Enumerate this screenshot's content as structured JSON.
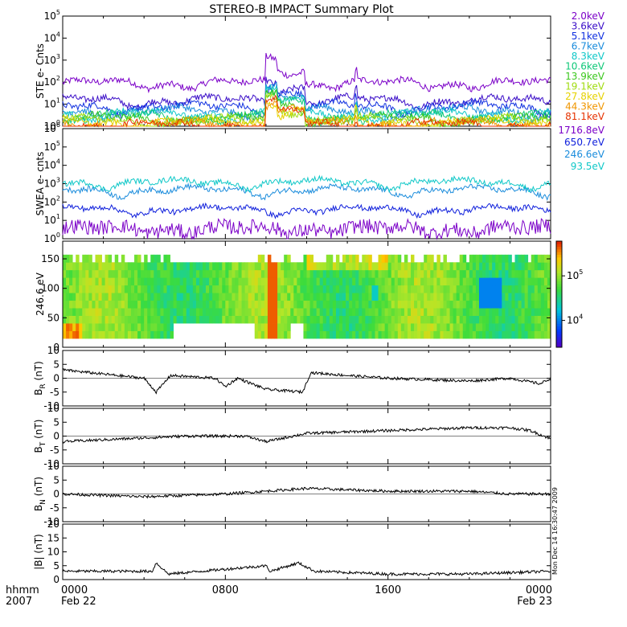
{
  "title": "STEREO-B IMPACT Summary Plot",
  "time_axis": {
    "corner_labels": [
      "hhmm",
      "2007"
    ],
    "ticks": [
      {
        "hour": 0,
        "label": "0000",
        "date": "Feb 22"
      },
      {
        "hour": 8,
        "label": "0800",
        "date": ""
      },
      {
        "hour": 16,
        "label": "1600",
        "date": ""
      },
      {
        "hour": 24,
        "label": "0000",
        "date": "Feb 23"
      }
    ],
    "range_hours": [
      0,
      24
    ]
  },
  "side_note": "Mon Dec 14 16:30:47 2009",
  "colors": {
    "axes": "#000000",
    "background": "#ffffff"
  },
  "chart_data": [
    {
      "type": "line",
      "ylabel": "STE e- Cnts",
      "scale": "log",
      "ylim": [
        1,
        100000
      ],
      "yticks": [
        {
          "v": 1,
          "base": "10",
          "exp": "0"
        },
        {
          "v": 10,
          "base": "10",
          "exp": "1"
        },
        {
          "v": 100,
          "base": "10",
          "exp": "2"
        },
        {
          "v": 1000,
          "base": "10",
          "exp": "3"
        },
        {
          "v": 10000,
          "base": "10",
          "exp": "4"
        },
        {
          "v": 100000,
          "base": "10",
          "exp": "5"
        }
      ],
      "events": [
        {
          "start": 9.95,
          "end": 10.55,
          "factor": 12
        },
        {
          "start": 10.55,
          "end": 11.9,
          "factor": 4
        },
        {
          "start": 14.4,
          "end": 14.5,
          "factor": 3
        }
      ],
      "series": [
        {
          "name": "2.0keV",
          "color": "#7b00c8",
          "base": 90
        },
        {
          "name": "3.6keV",
          "color": "#3a0dc8",
          "base": 15
        },
        {
          "name": "5.1keV",
          "color": "#1030e0",
          "base": 8
        },
        {
          "name": "6.7keV",
          "color": "#1a8cdc",
          "base": 5
        },
        {
          "name": "8.3keV",
          "color": "#10c8c8",
          "base": 3.6
        },
        {
          "name": "10.6keV",
          "color": "#10c878",
          "base": 2.8
        },
        {
          "name": "13.9keV",
          "color": "#3cc81e",
          "base": 2.2
        },
        {
          "name": "19.1keV",
          "color": "#a0dc10",
          "base": 1.8
        },
        {
          "name": "27.8keV",
          "color": "#e6d200",
          "base": 1.5
        },
        {
          "name": "44.3keV",
          "color": "#f09600",
          "base": 1.3
        },
        {
          "name": "81.1keV",
          "color": "#e63200",
          "base": 1.15
        }
      ]
    },
    {
      "type": "line",
      "ylabel": "SWEA e- cnts",
      "scale": "log",
      "ylim": [
        1,
        1000000
      ],
      "yticks": [
        {
          "v": 1,
          "base": "10",
          "exp": "0"
        },
        {
          "v": 10,
          "base": "10",
          "exp": "1"
        },
        {
          "v": 100,
          "base": "10",
          "exp": "2"
        },
        {
          "v": 1000,
          "base": "10",
          "exp": "3"
        },
        {
          "v": 10000,
          "base": "10",
          "exp": "4"
        },
        {
          "v": 100000,
          "base": "10",
          "exp": "5"
        },
        {
          "v": 1000000,
          "base": "10",
          "exp": "6"
        }
      ],
      "series": [
        {
          "name": "1716.8eV",
          "color": "#7b00c8",
          "base": 3.5
        },
        {
          "name": "650.7eV",
          "color": "#1020dc",
          "base": 40
        },
        {
          "name": "246.6eV",
          "color": "#1a8cdc",
          "base": 450
        },
        {
          "name": "93.5eV",
          "color": "#10c8c8",
          "base": 1200
        }
      ]
    },
    {
      "type": "heatmap",
      "ylabel": "246.6 eV",
      "ylim": [
        0,
        180
      ],
      "yticks": [
        0,
        50,
        100,
        150
      ],
      "colorbar": {
        "min": 2500,
        "max": 600000,
        "ticks": [
          {
            "v": 10000,
            "base": "10",
            "exp": "4"
          },
          {
            "v": 100000,
            "base": "10",
            "exp": "5"
          }
        ]
      }
    },
    {
      "type": "line",
      "ylabel_main": "B",
      "ylabel_sub": "R",
      "ylabel_unit": "(nT)",
      "ylim": [
        -10,
        10
      ],
      "yticks": [
        -10,
        -5,
        0,
        5,
        10
      ],
      "segments": [
        [
          0,
          3
        ],
        [
          2,
          1.5
        ],
        [
          4,
          0
        ],
        [
          4.6,
          -5
        ],
        [
          5.3,
          1
        ],
        [
          7.5,
          0
        ],
        [
          8,
          -3
        ],
        [
          8.6,
          0
        ],
        [
          10,
          -4
        ],
        [
          11.8,
          -5
        ],
        [
          12.2,
          2
        ],
        [
          14,
          1
        ],
        [
          16,
          0
        ],
        [
          20,
          -1
        ],
        [
          22,
          0
        ],
        [
          23.5,
          -2
        ],
        [
          24,
          0
        ]
      ]
    },
    {
      "type": "line",
      "ylabel_main": "B",
      "ylabel_sub": "T",
      "ylabel_unit": "(nT)",
      "ylim": [
        -10,
        10
      ],
      "yticks": [
        -10,
        -5,
        0,
        5,
        10
      ],
      "segments": [
        [
          0,
          -2
        ],
        [
          3,
          -1
        ],
        [
          6,
          0
        ],
        [
          9,
          0
        ],
        [
          10,
          -2
        ],
        [
          12,
          1
        ],
        [
          16,
          2
        ],
        [
          20,
          3
        ],
        [
          22,
          3
        ],
        [
          23,
          2
        ],
        [
          24,
          -1
        ]
      ]
    },
    {
      "type": "line",
      "ylabel_main": "B",
      "ylabel_sub": "N",
      "ylabel_unit": "(nT)",
      "ylim": [
        -10,
        10
      ],
      "yticks": [
        -10,
        -5,
        0,
        5,
        10
      ],
      "segments": [
        [
          0,
          0
        ],
        [
          4,
          -1
        ],
        [
          8,
          0
        ],
        [
          10,
          1
        ],
        [
          12,
          2
        ],
        [
          16,
          1
        ],
        [
          20,
          1
        ],
        [
          22,
          0
        ],
        [
          24,
          0
        ]
      ]
    },
    {
      "type": "line",
      "ylabel_main": "|B|",
      "ylabel_sub": "",
      "ylabel_unit": "(nT)",
      "ylim": [
        0,
        20
      ],
      "yticks": [
        0,
        5,
        10,
        15,
        20
      ],
      "segments": [
        [
          0,
          3
        ],
        [
          4.4,
          3
        ],
        [
          4.6,
          6
        ],
        [
          5.2,
          2
        ],
        [
          10,
          5
        ],
        [
          10.2,
          3
        ],
        [
          11.6,
          6
        ],
        [
          12.4,
          3
        ],
        [
          16,
          2
        ],
        [
          20,
          2
        ],
        [
          24,
          3
        ]
      ]
    }
  ]
}
